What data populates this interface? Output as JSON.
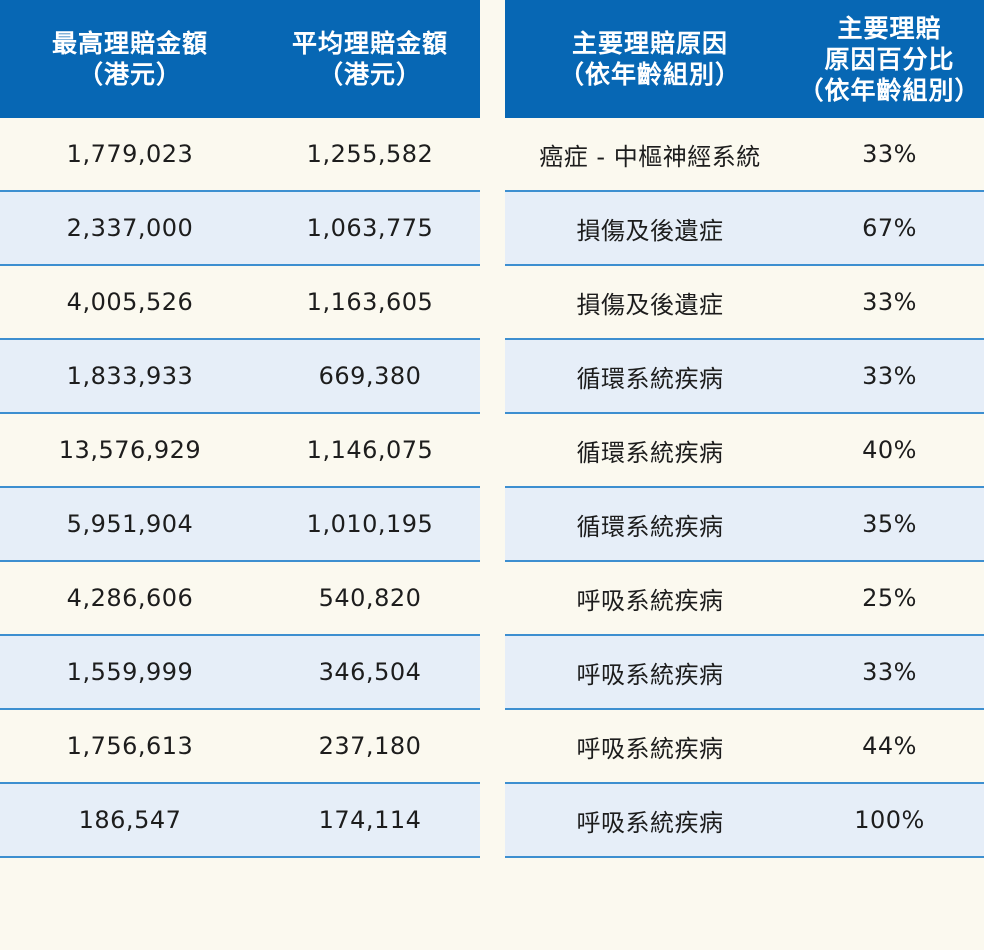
{
  "headers": {
    "max_claim": [
      "最高理賠金額",
      "（港元）"
    ],
    "avg_claim": [
      "平均理賠金額",
      "（港元）"
    ],
    "main_reason": [
      "主要理賠原因",
      "（依年齡組別）"
    ],
    "reason_pct": [
      "主要理賠",
      "原因百分比",
      "（依年齡組別）"
    ]
  },
  "rows": [
    {
      "max": "1,779,023",
      "avg": "1,255,582",
      "reason": "癌症 - 中樞神經系統",
      "pct": "33%"
    },
    {
      "max": "2,337,000",
      "avg": "1,063,775",
      "reason": "損傷及後遺症",
      "pct": "67%"
    },
    {
      "max": "4,005,526",
      "avg": "1,163,605",
      "reason": "損傷及後遺症",
      "pct": "33%"
    },
    {
      "max": "1,833,933",
      "avg": "669,380",
      "reason": "循環系統疾病",
      "pct": "33%"
    },
    {
      "max": "13,576,929",
      "avg": "1,146,075",
      "reason": "循環系統疾病",
      "pct": "40%"
    },
    {
      "max": "5,951,904",
      "avg": "1,010,195",
      "reason": "循環系統疾病",
      "pct": "35%"
    },
    {
      "max": "4,286,606",
      "avg": "540,820",
      "reason": "呼吸系統疾病",
      "pct": "25%"
    },
    {
      "max": "1,559,999",
      "avg": "346,504",
      "reason": "呼吸系統疾病",
      "pct": "33%"
    },
    {
      "max": "1,756,613",
      "avg": "237,180",
      "reason": "呼吸系統疾病",
      "pct": "44%"
    },
    {
      "max": "186,547",
      "avg": "174,114",
      "reason": "呼吸系統疾病",
      "pct": "100%"
    }
  ],
  "colors": {
    "header_bg": "#0767b4",
    "row_alt_bg": "#e6eef8",
    "page_bg": "#fbf9ef",
    "divider": "#3d8fd0"
  }
}
